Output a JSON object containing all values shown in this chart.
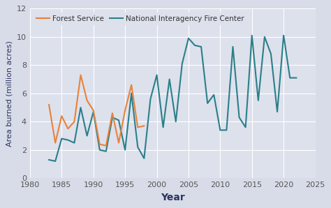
{
  "forest_service": {
    "years": [
      1983,
      1984,
      1985,
      1986,
      1987,
      1988,
      1989,
      1990,
      1991,
      1992,
      1993,
      1994,
      1995,
      1996,
      1997,
      1998
    ],
    "values": [
      5.2,
      2.5,
      4.4,
      3.5,
      4.0,
      7.3,
      5.5,
      4.8,
      2.4,
      2.3,
      4.6,
      2.5,
      4.8,
      6.6,
      3.6,
      3.7
    ]
  },
  "nifc": {
    "years": [
      1983,
      1984,
      1985,
      1986,
      1987,
      1988,
      1989,
      1990,
      1991,
      1992,
      1993,
      1994,
      1995,
      1996,
      1997,
      1998,
      1999,
      2000,
      2001,
      2002,
      2003,
      2004,
      2005,
      2006,
      2007,
      2008,
      2009,
      2010,
      2011,
      2012,
      2013,
      2014,
      2015,
      2016,
      2017,
      2018,
      2019,
      2020,
      2021,
      2022
    ],
    "values": [
      1.3,
      1.2,
      2.8,
      2.7,
      2.5,
      5.0,
      3.0,
      4.7,
      2.0,
      1.9,
      4.3,
      4.1,
      2.0,
      6.0,
      2.2,
      1.4,
      5.6,
      7.3,
      3.6,
      7.0,
      4.0,
      8.1,
      9.9,
      9.4,
      9.3,
      5.3,
      5.9,
      3.4,
      3.4,
      9.3,
      4.3,
      3.6,
      10.1,
      5.5,
      10.0,
      8.8,
      4.7,
      10.1,
      7.1,
      7.1
    ]
  },
  "fs_color": "#E8823A",
  "nifc_color": "#2A7F8A",
  "fig_bg": "#d8dce8",
  "plot_bg": "#dde1ec",
  "xlabel": "Year",
  "ylabel": "Area burned (million acres)",
  "xlim": [
    1980,
    2025
  ],
  "ylim": [
    0,
    12
  ],
  "yticks": [
    0,
    2,
    4,
    6,
    8,
    10,
    12
  ],
  "xticks": [
    1980,
    1985,
    1990,
    1995,
    2000,
    2005,
    2010,
    2015,
    2020,
    2025
  ],
  "fs_label": "Forest Service",
  "nifc_label": "National Interagency Fire Center",
  "line_width": 1.5,
  "xlabel_fontsize": 10,
  "ylabel_fontsize": 8,
  "tick_fontsize": 8,
  "legend_fontsize": 7.5,
  "label_color": "#2c3560",
  "tick_color": "#555555",
  "grid_color": "#ffffff"
}
